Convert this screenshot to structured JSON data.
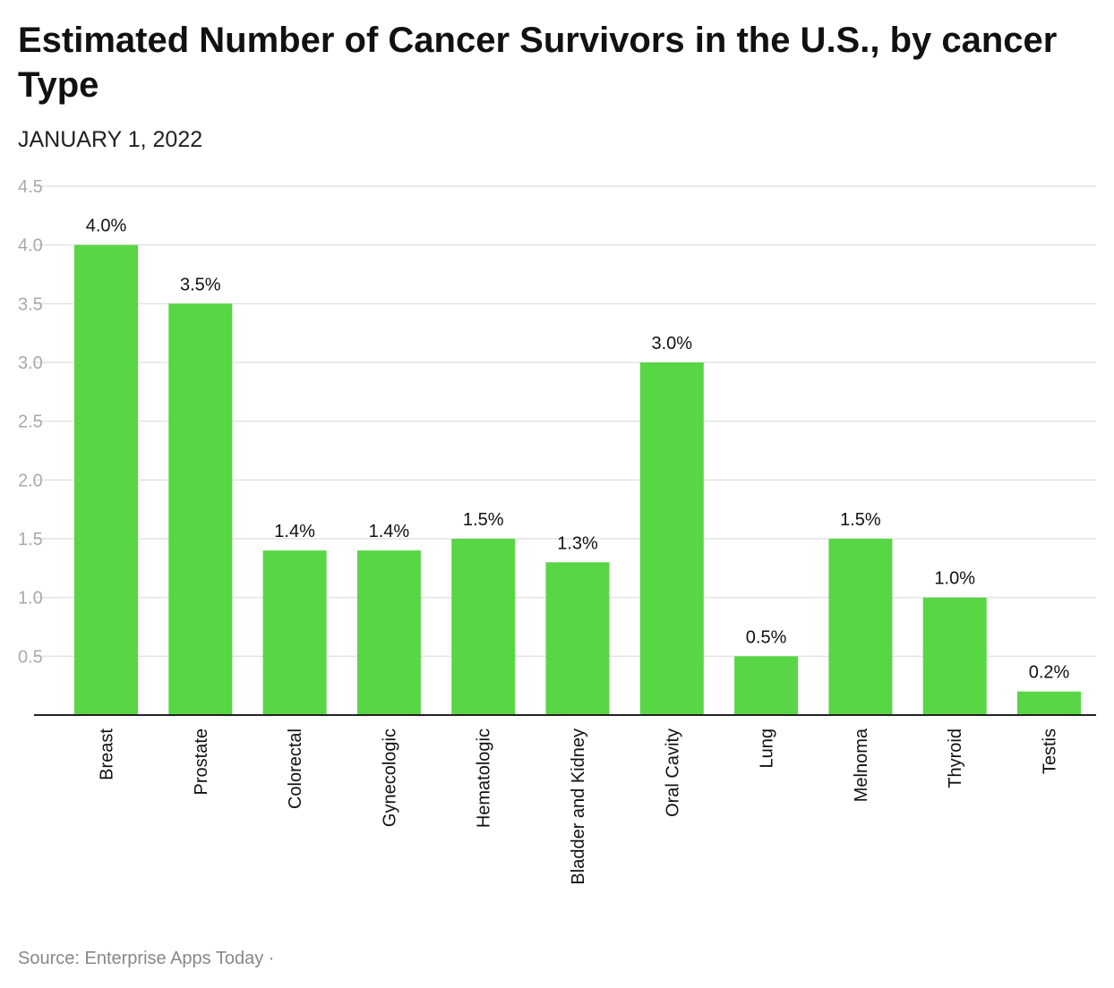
{
  "chart_data": {
    "type": "bar",
    "title": "Estimated Number of Cancer Survivors in the U.S., by cancer Type",
    "subtitle": "JANUARY 1, 2022",
    "xlabel": "",
    "ylabel": "",
    "categories": [
      "Breast",
      "Prostate",
      "Colorectal",
      "Gynecologic",
      "Hematologic",
      "Bladder and Kidney",
      "Oral Cavity",
      "Lung",
      "Melnoma",
      "Thyroid",
      "Testis"
    ],
    "values": [
      4.0,
      3.5,
      1.4,
      1.4,
      1.5,
      1.3,
      3.0,
      0.5,
      1.5,
      1.0,
      0.2
    ],
    "data_labels": [
      "4.0%",
      "3.5%",
      "1.4%",
      "1.4%",
      "1.5%",
      "1.3%",
      "3.0%",
      "0.5%",
      "1.5%",
      "1.0%",
      "0.2%"
    ],
    "yticks": [
      0.5,
      1.0,
      1.5,
      2.0,
      2.5,
      3.0,
      3.5,
      4.0,
      4.5
    ],
    "ytick_labels": [
      "0.5",
      "1.0",
      "1.5",
      "2.0",
      "2.5",
      "3.0",
      "3.5",
      "4.0",
      "4.5"
    ],
    "ylim": [
      0,
      4.5
    ],
    "grid": true,
    "legend": "none",
    "bar_color": "#58d645"
  },
  "footer": {
    "source": "Source: Enterprise Apps Today ·"
  }
}
